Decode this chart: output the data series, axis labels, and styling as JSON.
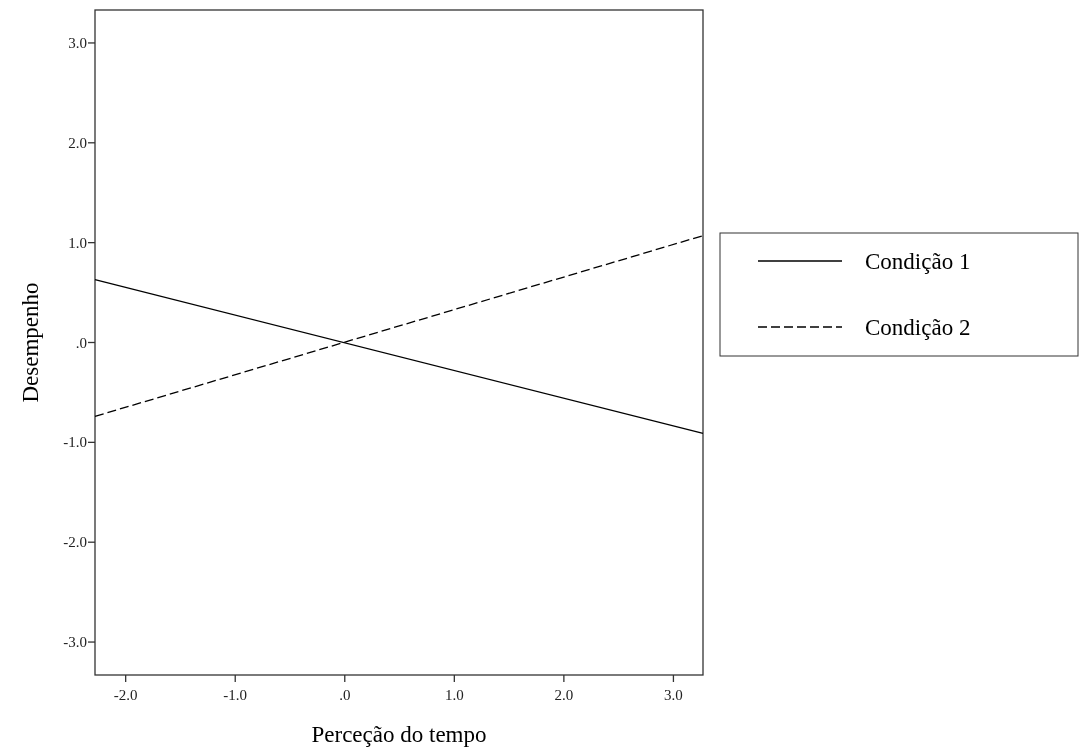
{
  "chart_data": {
    "type": "line",
    "xlabel": "Perceção do tempo",
    "ylabel": "Desempenho",
    "x": [
      -2.28,
      3.27
    ],
    "series": [
      {
        "name": "Condição 1",
        "color": "#000000",
        "line_style": "solid",
        "values": [
          0.63,
          -0.91
        ]
      },
      {
        "name": "Condição 2",
        "color": "#000000",
        "line_style": "dashed",
        "values": [
          -0.74,
          1.07
        ]
      }
    ],
    "xlim": [
      -2.28,
      3.27
    ],
    "xticks": [
      {
        "value": -2,
        "label": "-2.0"
      },
      {
        "value": -1,
        "label": "-1.0"
      },
      {
        "value": 0,
        "label": ".0"
      },
      {
        "value": 1,
        "label": "1.0"
      },
      {
        "value": 2,
        "label": "2.0"
      },
      {
        "value": 3,
        "label": "3.0"
      }
    ],
    "ylim": [
      -3.33,
      3.33
    ],
    "yticks": [
      {
        "value": -3,
        "label": "-3.0"
      },
      {
        "value": -2,
        "label": "-2.0"
      },
      {
        "value": -1,
        "label": "-1.0"
      },
      {
        "value": 0,
        "label": ".0"
      },
      {
        "value": 1,
        "label": "1.0"
      },
      {
        "value": 2,
        "label": "2.0"
      },
      {
        "value": 3,
        "label": "3.0"
      }
    ],
    "grid": false,
    "legend": "right",
    "marker": "none"
  }
}
